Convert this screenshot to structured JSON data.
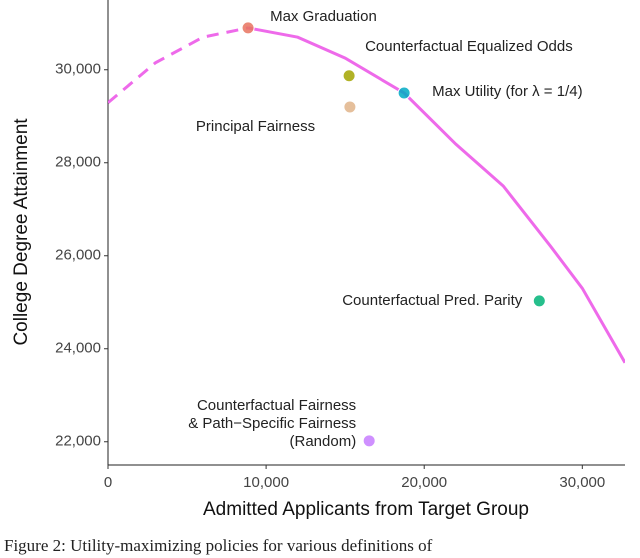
{
  "chart_data": {
    "type": "scatter",
    "x_label": "Admitted Applicants from Target Group",
    "y_label": "College Degree Attainment",
    "caption": "Figure 2: Utility-maximizing policies for various definitions of",
    "xlim": [
      0,
      32700
    ],
    "ylim": [
      21500,
      31500
    ],
    "xticks": [
      0,
      {
        "value": 10000,
        "label": "10,000"
      },
      {
        "value": 20000,
        "label": "20,000"
      },
      {
        "value": 30000,
        "label": "30,000"
      }
    ],
    "yticks": [
      {
        "value": 22000,
        "label": "22,000"
      },
      {
        "value": 24000,
        "label": "24,000"
      },
      {
        "value": 26000,
        "label": "26,000"
      },
      {
        "value": 28000,
        "label": "28,000"
      },
      {
        "value": 30000,
        "label": "30,000"
      }
    ],
    "curve_color": "#ee6aea",
    "curves": [
      {
        "style": "dashed",
        "x": [
          0,
          3000,
          6000,
          8860
        ],
        "y": [
          29290,
          30150,
          30700,
          30900
        ]
      },
      {
        "style": "solid",
        "x": [
          8860,
          12000,
          15000,
          18730,
          22000,
          25000,
          28000,
          30000,
          32700
        ],
        "y": [
          30900,
          30700,
          30250,
          29500,
          28400,
          27500,
          26200,
          25300,
          23700
        ]
      }
    ],
    "points": [
      {
        "label": [
          "Max Graduation"
        ],
        "x": 8860,
        "y": 30900,
        "color": "#e8735f"
      },
      {
        "label": [
          "Counterfactual Equalized Odds"
        ],
        "x": 15250,
        "y": 29870,
        "color": "#a3a500"
      },
      {
        "label": [
          "Principal Fairness"
        ],
        "x": 15300,
        "y": 29200,
        "color": "#e0b48a"
      },
      {
        "label": [
          "Max Utility (for λ = 1/4)"
        ],
        "x": 18730,
        "y": 29500,
        "color": "#00aac4"
      },
      {
        "label": [
          "Counterfactual Pred. Parity"
        ],
        "x": 27280,
        "y": 25030,
        "color": "#00b478"
      },
      {
        "label": [
          "Counterfactual Fairness",
          "& Path−Specific Fairness",
          "(Random)"
        ],
        "x": 16520,
        "y": 22020,
        "color": "#c77cff"
      }
    ]
  }
}
